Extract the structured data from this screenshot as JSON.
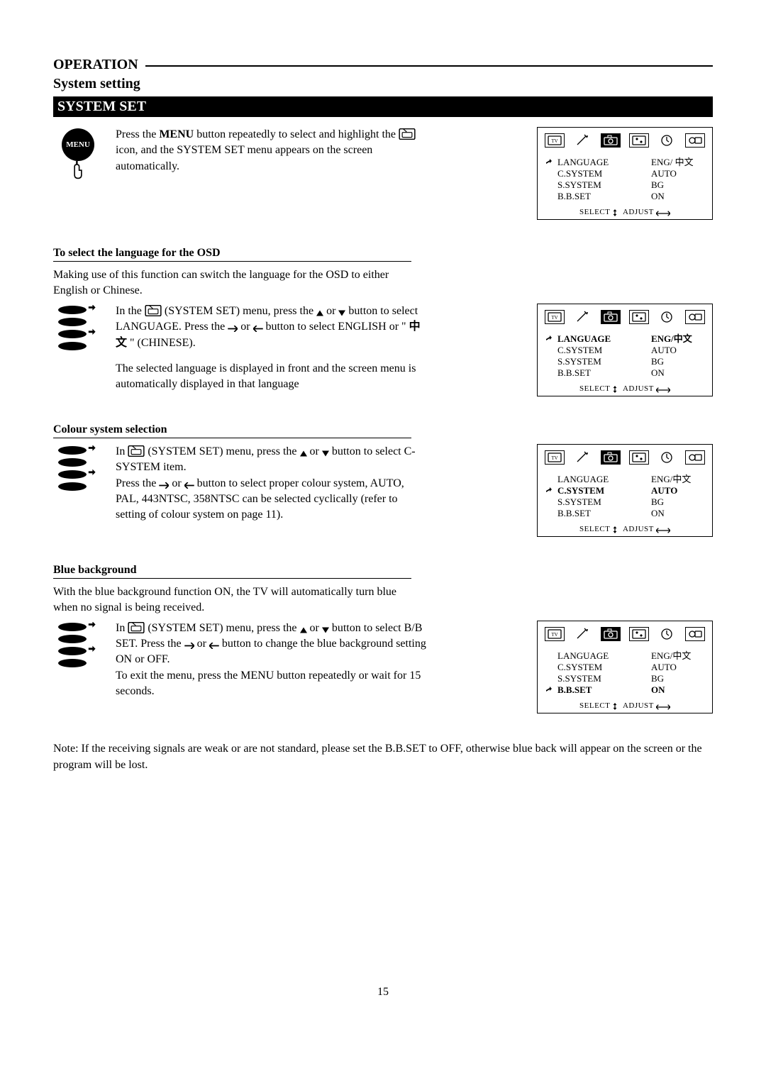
{
  "header": {
    "operation": "OPERATION",
    "subtitle": "System setting",
    "bar": "SYSTEM SET"
  },
  "intro": {
    "text_before_menu": "Press the ",
    "menu_word": "MENU",
    "text_after_menu": " button repeatedly to select and highlight the ",
    "text_after_icon": " icon, and the SYSTEM SET menu appears on the screen automatically."
  },
  "icons": {
    "menu_label": "MENU"
  },
  "subheads": {
    "lang": "To select the language for the OSD",
    "colour": "Colour system selection",
    "blue": "Blue background"
  },
  "lang": {
    "before_row": "Making use of this function can switch the language for the OSD to either English or Chinese.",
    "p1a": "In the ",
    "p1b": " (SYSTEM SET) menu, press the ",
    "p1c": " or ",
    "p1d": " button to select LANGUAGE. Press the ",
    "p1e": " or ",
    "p1f": " button to select ENGLISH or \" ",
    "p1g": "中文",
    "p1h": " \" (CHINESE).",
    "p2": "The selected language is displayed in front and the screen menu is automatically displayed in that language"
  },
  "colour": {
    "p1a": "In ",
    "p1b": " (SYSTEM SET) menu, press the ",
    "p1c": " or ",
    "p1d": " button to select C-SYSTEM item.",
    "p2a": "Press the ",
    "p2b": " or ",
    "p2c": " button to select proper colour system, AUTO, PAL, 443NTSC, 358NTSC can be selected cyclically (refer to setting of colour system on page 11)."
  },
  "blue": {
    "before_row": "With the blue background function ON, the TV will automatically turn blue when no signal is being received.",
    "p1a": "In ",
    "p1b": " (SYSTEM SET) menu, press the ",
    "p1c": " or ",
    "p1d": " button to select B/B SET. Press the ",
    "p1e": " or ",
    "p1f": " button to change the blue background setting ON or OFF.",
    "p2": "To exit the menu, press the MENU button repeatedly or wait for 15 seconds."
  },
  "note": "Note: If the receiving signals are weak or are not standard, please set the B.B.SET to OFF, otherwise blue back will appear on the screen or the program will be lost.",
  "page_number": "15",
  "osd_common": {
    "foot_select": "SELECT",
    "foot_adjust": "ADJUST"
  },
  "osd": [
    {
      "active_tab": 2,
      "pointer_index": 0,
      "bold_index": -1,
      "rows": [
        {
          "k": "LANGUAGE",
          "v": "ENG/ 中文"
        },
        {
          "k": "C.SYSTEM",
          "v": "AUTO"
        },
        {
          "k": "S.SYSTEM",
          "v": "BG"
        },
        {
          "k": "B.B.SET",
          "v": "ON"
        }
      ]
    },
    {
      "active_tab": 2,
      "pointer_index": 0,
      "bold_index": 0,
      "rows": [
        {
          "k": "LANGUAGE",
          "v": "ENG/中文"
        },
        {
          "k": "C.SYSTEM",
          "v": "AUTO"
        },
        {
          "k": "S.SYSTEM",
          "v": "BG"
        },
        {
          "k": "B.B.SET",
          "v": "ON"
        }
      ]
    },
    {
      "active_tab": 2,
      "pointer_index": 1,
      "bold_index": 1,
      "rows": [
        {
          "k": "LANGUAGE",
          "v": "ENG/中文"
        },
        {
          "k": "C.SYSTEM",
          "v": "AUTO"
        },
        {
          "k": "S.SYSTEM",
          "v": "BG"
        },
        {
          "k": "B.B.SET",
          "v": "ON"
        }
      ]
    },
    {
      "active_tab": 2,
      "pointer_index": 3,
      "bold_index": 3,
      "rows": [
        {
          "k": "LANGUAGE",
          "v": "ENG/中文"
        },
        {
          "k": "C.SYSTEM",
          "v": "AUTO"
        },
        {
          "k": "S.SYSTEM",
          "v": "BG"
        },
        {
          "k": "B.B.SET",
          "v": "ON"
        }
      ]
    }
  ],
  "osd_tab_icons": [
    "tv",
    "magic",
    "camera",
    "settings",
    "clock",
    "link"
  ]
}
